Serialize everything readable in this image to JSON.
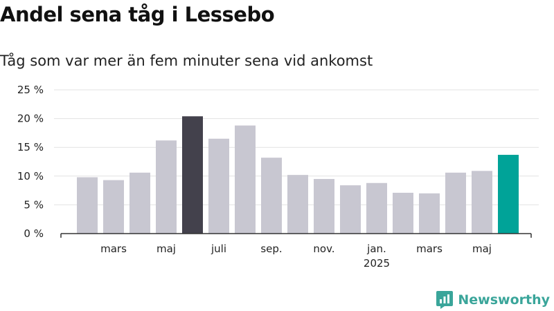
{
  "chart_data": {
    "type": "bar",
    "title": "Andel sena tåg i Lessebo",
    "subtitle": "Tåg som var mer än fem minuter sena vid ankomst",
    "xlabel": "",
    "ylabel": "",
    "ylim": [
      0,
      25
    ],
    "y_ticks": [
      0,
      5,
      10,
      15,
      20,
      25
    ],
    "y_tick_labels": [
      "0 %",
      "5 %",
      "10 %",
      "15 %",
      "20 %",
      "25 %"
    ],
    "grid": true,
    "categories": [
      "2024-02",
      "2024-03",
      "2024-04",
      "2024-05",
      "2024-06",
      "2024-07",
      "2024-08",
      "2024-09",
      "2024-10",
      "2024-11",
      "2024-12",
      "2025-01",
      "2025-02",
      "2025-03",
      "2025-04",
      "2025-05",
      "2025-06"
    ],
    "values": [
      9.8,
      9.3,
      10.6,
      16.2,
      20.4,
      16.5,
      18.8,
      13.2,
      10.2,
      9.5,
      8.4,
      8.8,
      7.1,
      7.0,
      10.6,
      10.9,
      13.7
    ],
    "x_tick_labels": [
      {
        "category": "2024-03",
        "label": "mars",
        "sub": ""
      },
      {
        "category": "2024-05",
        "label": "maj",
        "sub": ""
      },
      {
        "category": "2024-07",
        "label": "juli",
        "sub": ""
      },
      {
        "category": "2024-09",
        "label": "sep.",
        "sub": ""
      },
      {
        "category": "2024-11",
        "label": "nov.",
        "sub": ""
      },
      {
        "category": "2025-01",
        "label": "jan.",
        "sub": "2025"
      },
      {
        "category": "2025-03",
        "label": "mars",
        "sub": ""
      },
      {
        "category": "2025-05",
        "label": "maj",
        "sub": ""
      }
    ],
    "highlights": {
      "2024-06": "#43414c",
      "2025-06": "#00a398"
    },
    "colors": {
      "bar": "#c8c7d1",
      "grid": "#e2e2e2",
      "axis": "#333333"
    }
  },
  "brand": {
    "name": "Newsworthy",
    "color": "#3aa59a"
  }
}
